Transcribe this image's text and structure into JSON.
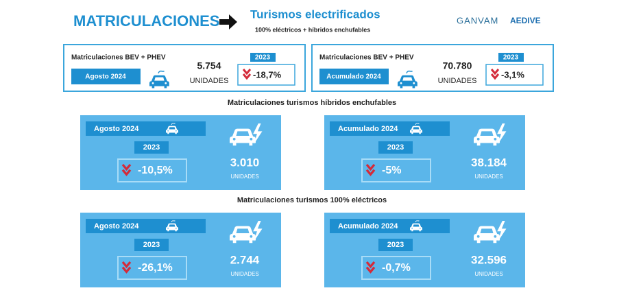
{
  "header": {
    "title": "MATRICULACIONES",
    "subtitle": "Turismos electrificados",
    "description": "100% eléctricos + híbridos enchufables",
    "logos": [
      "GANVAM",
      "AEDIVE"
    ]
  },
  "summary": [
    {
      "label": "Matriculaciones BEV + PHEV",
      "period": "Agosto 2024",
      "value": "5.754",
      "unit": "UNIDADES",
      "compare_year": "2023",
      "change": "-18,7%"
    },
    {
      "label": "Matriculaciones BEV + PHEV",
      "period": "Acumulado 2024",
      "value": "70.780",
      "unit": "UNIDADES",
      "compare_year": "2023",
      "change": "-3,1%"
    }
  ],
  "sections": [
    {
      "title": "Matriculaciones turismos híbridos enchufables",
      "panels": [
        {
          "period": "Agosto 2024",
          "compare_year": "2023",
          "change": "-10,5%",
          "value": "3.010",
          "unit": "UNIDADES"
        },
        {
          "period": "Acumulado 2024",
          "compare_year": "2023",
          "change": "-5%",
          "value": "38.184",
          "unit": "UNIDADES"
        }
      ]
    },
    {
      "title": "Matriculaciones turismos 100% eléctricos",
      "panels": [
        {
          "period": "Agosto 2024",
          "compare_year": "2023",
          "change": "-26,1%",
          "value": "2.744",
          "unit": "UNIDADES"
        },
        {
          "period": "Acumulado 2024",
          "compare_year": "2023",
          "change": "-0,7%",
          "value": "32.596",
          "unit": "UNIDADES"
        }
      ]
    }
  ]
}
